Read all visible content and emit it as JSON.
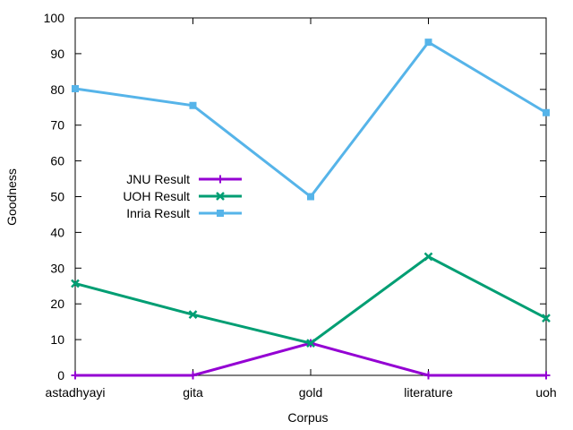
{
  "chart_data": {
    "type": "line",
    "title": "",
    "xlabel": "Corpus",
    "ylabel": "Goodness",
    "categories": [
      "astadhyayi",
      "gita",
      "gold",
      "literature",
      "uoh"
    ],
    "ylim": [
      0,
      100
    ],
    "yticks": [
      0,
      10,
      20,
      30,
      40,
      50,
      60,
      70,
      80,
      90,
      100
    ],
    "grid": false,
    "legend_position": "center-left",
    "series": [
      {
        "name": "JNU Result",
        "values": [
          0,
          0,
          9,
          0,
          0
        ],
        "color": "#9400d3",
        "marker": "plus"
      },
      {
        "name": "UOH Result",
        "values": [
          25.7,
          17,
          9,
          33.2,
          16
        ],
        "color": "#009e73",
        "marker": "cross"
      },
      {
        "name": "Inria Result",
        "values": [
          80.2,
          75.5,
          50,
          93.2,
          73.5
        ],
        "color": "#56b4e9",
        "marker": "square"
      }
    ]
  }
}
